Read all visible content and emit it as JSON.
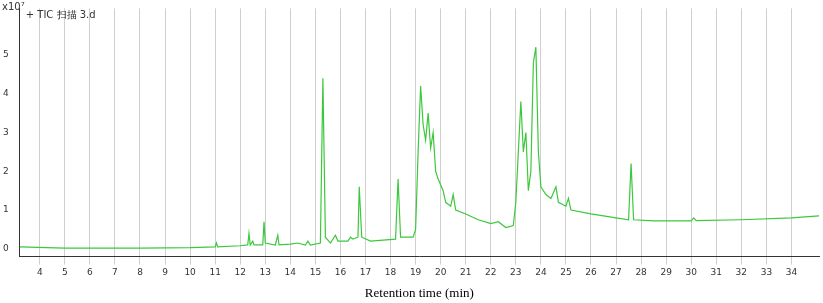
{
  "chart_data": {
    "type": "line",
    "title": "+ TIC 扫描 3.d",
    "ylabel": "x10⁷",
    "xlabel": "Retention time (min)",
    "x": [
      3.2,
      5,
      8,
      10,
      11,
      11.05,
      11.1,
      12,
      12.3,
      12.35,
      12.4,
      12.5,
      12.55,
      12.9,
      12.95,
      13.0,
      13.4,
      13.5,
      13.55,
      14,
      14.3,
      14.6,
      14.7,
      14.8,
      15.2,
      15.3,
      15.4,
      15.6,
      15.8,
      15.9,
      16.3,
      16.4,
      16.5,
      16.7,
      16.75,
      16.85,
      17.2,
      18.2,
      18.3,
      18.4,
      18.9,
      19.0,
      19.1,
      19.2,
      19.3,
      19.4,
      19.5,
      19.6,
      19.7,
      19.8,
      19.9,
      20.1,
      20.2,
      20.4,
      20.5,
      20.6,
      21,
      21.5,
      22,
      22.3,
      22.6,
      22.9,
      23.0,
      23.1,
      23.2,
      23.3,
      23.4,
      23.5,
      23.6,
      23.7,
      23.8,
      23.9,
      24.0,
      24.2,
      24.4,
      24.6,
      24.7,
      25.0,
      25.1,
      25.2,
      26,
      27,
      27.5,
      27.6,
      27.7,
      28.5,
      30,
      30.1,
      30.2,
      32,
      34,
      35.1
    ],
    "values": [
      0.05,
      0.02,
      0.02,
      0.03,
      0.05,
      0.15,
      0.05,
      0.08,
      0.1,
      0.4,
      0.1,
      0.2,
      0.1,
      0.1,
      0.7,
      0.15,
      0.1,
      0.35,
      0.1,
      0.12,
      0.15,
      0.1,
      0.2,
      0.1,
      0.15,
      4.4,
      0.3,
      0.15,
      0.35,
      0.2,
      0.2,
      0.3,
      0.25,
      0.3,
      1.6,
      0.3,
      0.2,
      0.25,
      1.8,
      0.3,
      0.3,
      0.5,
      2.5,
      4.2,
      3.2,
      2.8,
      3.5,
      2.6,
      3.0,
      2.0,
      1.8,
      1.5,
      1.2,
      1.1,
      1.4,
      1.0,
      0.9,
      0.75,
      0.65,
      0.7,
      0.55,
      0.6,
      1.2,
      2.5,
      3.8,
      2.5,
      3.0,
      1.5,
      2.0,
      4.8,
      5.2,
      2.5,
      1.6,
      1.4,
      1.3,
      1.6,
      1.2,
      1.1,
      1.3,
      1.0,
      0.9,
      0.8,
      0.75,
      2.2,
      0.75,
      0.72,
      0.72,
      0.8,
      0.73,
      0.75,
      0.8,
      0.85
    ],
    "color": "#3cc83c",
    "xlim": [
      3.2,
      35.1
    ],
    "xticks": [
      4,
      5,
      6,
      7,
      8,
      9,
      10,
      11,
      12,
      13,
      14,
      15,
      16,
      17,
      18,
      19,
      20,
      21,
      22,
      23,
      24,
      25,
      26,
      27,
      28,
      29,
      30,
      31,
      32,
      33,
      34
    ],
    "ylim": [
      -0.2,
      6.2
    ],
    "yticks": [
      0,
      1,
      2,
      3,
      4,
      5
    ],
    "grid": true
  }
}
